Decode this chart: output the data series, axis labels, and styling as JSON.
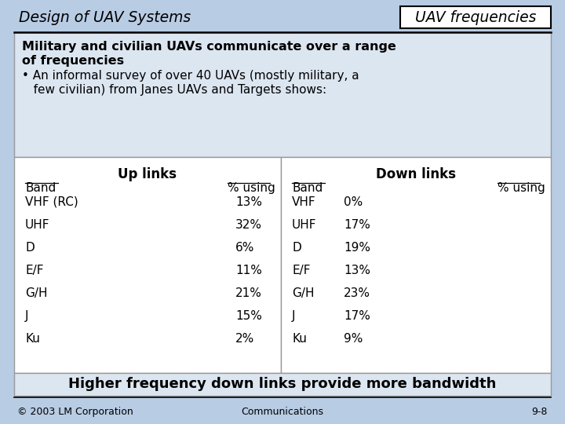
{
  "slide_title_left": "Design of UAV Systems",
  "slide_title_right": "UAV frequencies",
  "bg_color": "#b8cce4",
  "header_bg": "#dce6f1",
  "footer_bg": "#dce6f1",
  "headline_line1": "Military and civilian UAVs communicate over a range",
  "headline_line2": "of frequencies",
  "bullet_line1": "• An informal survey of over 40 UAVs (mostly military, a",
  "bullet_line2": "   few civilian) from Janes UAVs and Targets shows:",
  "up_links_title": "Up links",
  "down_links_title": "Down links",
  "col_header_band": "Band",
  "col_header_pct": "% using",
  "up_rows": [
    [
      "VHF (RC)",
      "13%"
    ],
    [
      "UHF",
      "32%"
    ],
    [
      "D",
      "6%"
    ],
    [
      "E/F",
      "11%"
    ],
    [
      "G/H",
      "21%"
    ],
    [
      "J",
      "15%"
    ],
    [
      "Ku",
      "2%"
    ]
  ],
  "down_rows": [
    [
      "VHF",
      "0%"
    ],
    [
      "UHF",
      "17%"
    ],
    [
      "D",
      "19%"
    ],
    [
      "E/F",
      "13%"
    ],
    [
      "G/H",
      "23%"
    ],
    [
      "J",
      "17%"
    ],
    [
      "Ku",
      "9%"
    ]
  ],
  "footer_text": "Higher frequency down links provide more bandwidth",
  "copyright": "© 2003 LM Corporation",
  "center_bottom": "Communications",
  "page_num": "9-8"
}
